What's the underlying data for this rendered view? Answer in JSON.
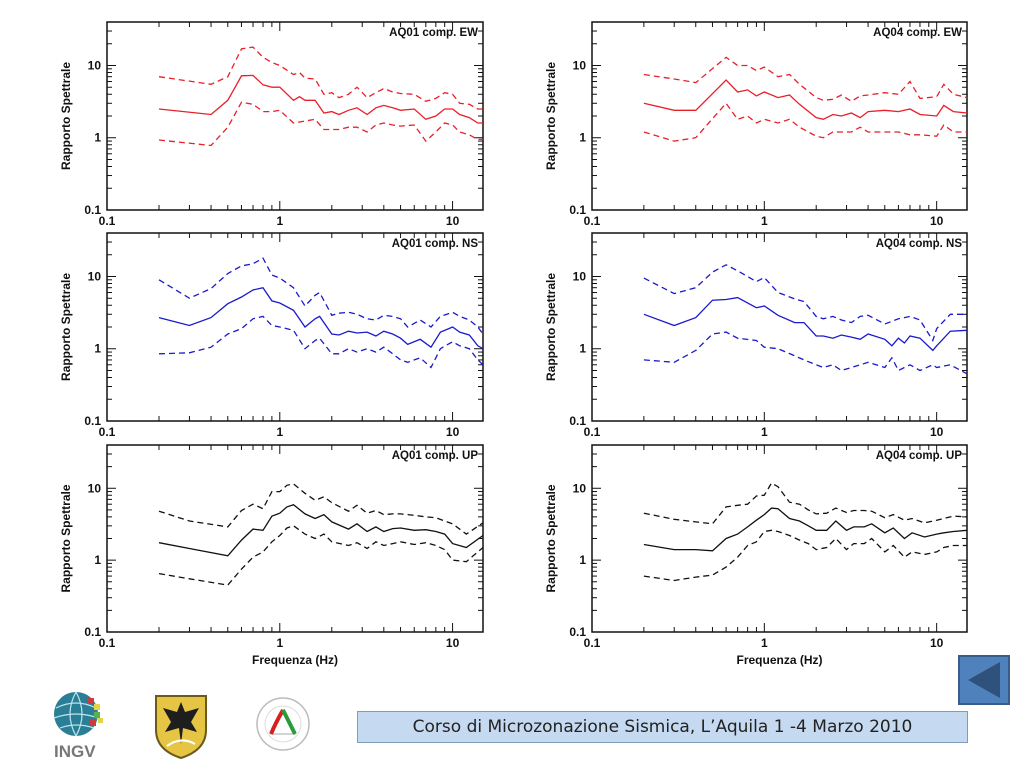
{
  "footer": {
    "text": "Corso di Microzonazione Sismica, L’Aquila 1 -4 Marzo 2010"
  },
  "nav": {
    "back_icon": "triangle-left-icon"
  },
  "logos": [
    {
      "name": "ingv-logo",
      "text": "INGV"
    },
    {
      "name": "regione-abruzzo-crest",
      "text": ""
    },
    {
      "name": "protezione-civile-logo",
      "text": "PROTEZIONE CIVILE NAZIONALE"
    }
  ],
  "colors": {
    "EW": "#e8202a",
    "NS": "#1a1acc",
    "UP": "#111111",
    "footer_bg": "#c5d9f1",
    "nav_btn": "#4f81bd"
  },
  "chart_data": [
    {
      "type": "line",
      "title": "AQ01 comp. EW",
      "component": "EW",
      "xlabel": "",
      "ylabel": "Rapporto Spettrale",
      "xscale": "log",
      "yscale": "log",
      "xlim": [
        0.1,
        15
      ],
      "ylim": [
        0.1,
        40
      ],
      "xticks": [
        "0.1",
        "1",
        "10"
      ],
      "yticks": [
        "0.1",
        "1",
        "10"
      ],
      "x": [
        0.2,
        0.4,
        0.5,
        0.6,
        0.7,
        0.8,
        0.9,
        1.0,
        1.2,
        1.3,
        1.4,
        1.6,
        1.8,
        2.0,
        2.2,
        2.5,
        2.8,
        3.2,
        3.6,
        4.0,
        4.5,
        5.0,
        6.0,
        7.0,
        8.0,
        9.0,
        10.0,
        11.0,
        12.5,
        14.0,
        15.0
      ],
      "series": [
        {
          "name": "mean",
          "style": "solid",
          "values": [
            2.5,
            2.1,
            3.3,
            7.2,
            7.3,
            5.4,
            5.0,
            5.0,
            3.3,
            3.7,
            3.3,
            3.3,
            2.2,
            2.3,
            2.1,
            2.4,
            2.6,
            2.1,
            2.6,
            2.8,
            2.6,
            2.4,
            2.5,
            1.8,
            2.0,
            2.5,
            2.5,
            2.1,
            1.9,
            1.6,
            1.6
          ]
        },
        {
          "name": "mean+sd",
          "style": "dashed",
          "values": [
            7.0,
            5.5,
            7.0,
            17.0,
            18.0,
            13.0,
            11.0,
            10.0,
            7.5,
            8.0,
            6.7,
            6.5,
            4.0,
            4.2,
            3.6,
            4.0,
            5.0,
            3.6,
            4.2,
            4.8,
            4.3,
            4.1,
            4.0,
            3.2,
            3.5,
            4.2,
            4.0,
            3.0,
            2.9,
            2.5,
            2.5
          ]
        },
        {
          "name": "mean-sd",
          "style": "dashed",
          "values": [
            0.93,
            0.78,
            1.4,
            3.1,
            2.9,
            2.3,
            2.3,
            2.4,
            1.6,
            1.65,
            1.7,
            1.8,
            1.3,
            1.3,
            1.3,
            1.4,
            1.4,
            1.2,
            1.5,
            1.6,
            1.5,
            1.45,
            1.5,
            0.9,
            1.2,
            1.6,
            1.5,
            1.2,
            1.1,
            0.95,
            0.95
          ]
        }
      ]
    },
    {
      "type": "line",
      "title": "AQ04 comp. EW",
      "component": "EW",
      "xlabel": "",
      "ylabel": "Rapporto Spettrale",
      "xscale": "log",
      "yscale": "log",
      "xlim": [
        0.1,
        15
      ],
      "ylim": [
        0.1,
        40
      ],
      "xticks": [
        "0.1",
        "1",
        "10"
      ],
      "yticks": [
        "0.1",
        "1",
        "10"
      ],
      "x": [
        0.2,
        0.3,
        0.4,
        0.6,
        0.7,
        0.8,
        0.9,
        1.0,
        1.2,
        1.4,
        1.6,
        2.0,
        2.2,
        2.5,
        2.8,
        3.2,
        3.6,
        4.0,
        5.0,
        6.0,
        7.0,
        8.0,
        10.0,
        11.0,
        12.5,
        15.0
      ],
      "series": [
        {
          "name": "mean",
          "style": "solid",
          "values": [
            3.0,
            2.4,
            2.4,
            6.3,
            4.3,
            4.6,
            3.8,
            4.3,
            3.6,
            3.9,
            2.9,
            1.9,
            1.8,
            2.1,
            2.0,
            2.2,
            1.9,
            2.3,
            2.4,
            2.3,
            2.5,
            2.1,
            2.0,
            2.8,
            2.3,
            2.2
          ]
        },
        {
          "name": "mean+sd",
          "style": "dashed",
          "values": [
            7.5,
            6.5,
            5.8,
            13.0,
            10.0,
            10.0,
            8.5,
            9.5,
            7.0,
            7.5,
            5.5,
            3.6,
            3.3,
            3.4,
            3.9,
            3.2,
            3.8,
            3.9,
            4.2,
            4.0,
            6.0,
            3.5,
            3.7,
            5.5,
            4.0,
            3.6
          ]
        },
        {
          "name": "mean-sd",
          "style": "dashed",
          "values": [
            1.2,
            0.9,
            1.0,
            3.0,
            1.8,
            2.0,
            1.6,
            1.8,
            1.6,
            1.8,
            1.4,
            1.05,
            1.0,
            1.2,
            1.2,
            1.2,
            1.4,
            1.2,
            1.2,
            1.2,
            1.1,
            1.1,
            1.05,
            1.5,
            1.2,
            1.2
          ]
        }
      ]
    },
    {
      "type": "line",
      "title": "AQ01 comp. NS",
      "component": "NS",
      "xlabel": "",
      "ylabel": "Rapporto Spettrale",
      "xscale": "log",
      "yscale": "log",
      "xlim": [
        0.1,
        15
      ],
      "ylim": [
        0.1,
        40
      ],
      "xticks": [
        "0.1",
        "1",
        "10"
      ],
      "yticks": [
        "0.1",
        "1",
        "10"
      ],
      "x": [
        0.2,
        0.3,
        0.4,
        0.5,
        0.6,
        0.7,
        0.8,
        0.9,
        1.0,
        1.2,
        1.4,
        1.6,
        1.7,
        2.0,
        2.2,
        2.5,
        2.8,
        3.2,
        3.6,
        4.0,
        4.5,
        5.0,
        5.5,
        6.5,
        7.5,
        8.5,
        10.0,
        11.0,
        12.5,
        14.0,
        15.0
      ],
      "series": [
        {
          "name": "mean",
          "style": "solid",
          "values": [
            2.7,
            2.1,
            2.7,
            4.2,
            5.2,
            6.5,
            7.0,
            4.6,
            4.3,
            3.4,
            2.0,
            2.6,
            2.8,
            1.6,
            1.55,
            1.75,
            1.65,
            1.7,
            1.5,
            1.75,
            1.6,
            1.4,
            1.15,
            1.35,
            1.05,
            1.7,
            2.0,
            1.7,
            1.55,
            1.1,
            1.0
          ]
        },
        {
          "name": "mean+sd",
          "style": "dashed",
          "values": [
            9.0,
            5.0,
            6.8,
            11.0,
            14.0,
            15.0,
            18.0,
            10.5,
            9.5,
            7.0,
            3.9,
            5.5,
            6.0,
            2.9,
            3.1,
            3.2,
            3.0,
            2.6,
            2.5,
            2.9,
            2.8,
            2.6,
            2.0,
            2.5,
            2.0,
            2.8,
            3.2,
            2.8,
            2.5,
            2.0,
            1.6
          ]
        },
        {
          "name": "mean-sd",
          "style": "dashed",
          "values": [
            0.85,
            0.88,
            1.05,
            1.6,
            1.9,
            2.6,
            2.8,
            2.1,
            2.0,
            1.8,
            1.0,
            1.3,
            1.4,
            0.85,
            0.85,
            1.0,
            0.9,
            1.0,
            0.9,
            1.05,
            0.85,
            0.7,
            0.65,
            0.75,
            0.55,
            1.0,
            1.25,
            1.1,
            1.0,
            0.7,
            0.6
          ]
        }
      ]
    },
    {
      "type": "line",
      "title": "AQ04 comp. NS",
      "component": "NS",
      "xlabel": "",
      "ylabel": "Rapporto Spettrale",
      "xscale": "log",
      "yscale": "log",
      "xlim": [
        0.1,
        15
      ],
      "ylim": [
        0.1,
        40
      ],
      "xticks": [
        "0.1",
        "1",
        "10"
      ],
      "yticks": [
        "0.1",
        "1",
        "10"
      ],
      "x": [
        0.2,
        0.3,
        0.4,
        0.5,
        0.6,
        0.7,
        0.9,
        1.0,
        1.2,
        1.5,
        1.7,
        2.0,
        2.2,
        2.5,
        2.8,
        3.2,
        3.6,
        4.0,
        5.0,
        5.5,
        6.0,
        6.5,
        7.0,
        8.0,
        9.5,
        10.0,
        12.0,
        15.0
      ],
      "series": [
        {
          "name": "mean",
          "style": "solid",
          "values": [
            3.0,
            2.1,
            2.7,
            4.7,
            4.8,
            5.1,
            3.7,
            3.9,
            2.9,
            2.3,
            2.3,
            1.5,
            1.5,
            1.4,
            1.55,
            1.45,
            1.35,
            1.6,
            1.35,
            1.1,
            1.4,
            1.2,
            1.5,
            1.4,
            0.95,
            1.1,
            1.75,
            1.8
          ]
        },
        {
          "name": "mean+sd",
          "style": "dashed",
          "values": [
            9.5,
            5.8,
            7.0,
            11.5,
            14.5,
            12.0,
            8.5,
            9.7,
            6.0,
            4.9,
            4.5,
            2.8,
            2.6,
            2.8,
            2.5,
            2.3,
            2.8,
            2.9,
            2.2,
            2.4,
            2.6,
            2.7,
            2.8,
            2.5,
            1.3,
            1.9,
            3.0,
            3.0
          ]
        },
        {
          "name": "mean-sd",
          "style": "dashed",
          "values": [
            0.7,
            0.65,
            0.95,
            1.6,
            1.7,
            1.4,
            1.3,
            1.05,
            1.0,
            0.8,
            0.7,
            0.6,
            0.55,
            0.6,
            0.5,
            0.55,
            0.6,
            0.65,
            0.55,
            0.75,
            0.5,
            0.55,
            0.6,
            0.5,
            0.6,
            0.55,
            0.6,
            0.45
          ]
        }
      ]
    },
    {
      "type": "line",
      "title": "AQ01 comp. UP",
      "component": "UP",
      "xlabel": "Frequenza (Hz)",
      "ylabel": "Rapporto Spettrale",
      "xscale": "log",
      "yscale": "log",
      "xlim": [
        0.1,
        15
      ],
      "ylim": [
        0.1,
        40
      ],
      "xticks": [
        "0.1",
        "1",
        "10"
      ],
      "yticks": [
        "0.1",
        "1",
        "10"
      ],
      "x": [
        0.2,
        0.3,
        0.5,
        0.6,
        0.7,
        0.8,
        0.9,
        1.0,
        1.1,
        1.2,
        1.4,
        1.6,
        1.8,
        2.0,
        2.5,
        2.8,
        3.2,
        3.6,
        4.0,
        4.5,
        5.0,
        6.0,
        7.0,
        8.0,
        9.0,
        10.0,
        12.0,
        15.0
      ],
      "series": [
        {
          "name": "mean",
          "style": "solid",
          "values": [
            1.75,
            1.45,
            1.15,
            1.9,
            2.7,
            2.6,
            4.1,
            4.5,
            5.5,
            5.9,
            4.4,
            3.8,
            4.3,
            3.4,
            2.7,
            3.2,
            2.5,
            2.9,
            2.5,
            2.75,
            2.8,
            2.6,
            2.65,
            2.5,
            2.3,
            1.7,
            1.5,
            2.2
          ]
        },
        {
          "name": "mean+sd",
          "style": "dashed",
          "values": [
            4.8,
            3.5,
            2.9,
            4.9,
            6.0,
            5.2,
            9.0,
            9.0,
            11.0,
            11.5,
            8.5,
            6.8,
            7.6,
            6.3,
            4.8,
            5.8,
            4.5,
            4.9,
            4.3,
            4.4,
            4.4,
            4.2,
            4.0,
            3.9,
            3.5,
            3.2,
            2.3,
            3.3
          ]
        },
        {
          "name": "mean-sd",
          "style": "dashed",
          "values": [
            0.65,
            0.55,
            0.45,
            0.75,
            1.1,
            1.3,
            1.8,
            2.2,
            2.8,
            3.0,
            2.3,
            2.0,
            2.3,
            1.8,
            1.6,
            1.75,
            1.45,
            1.8,
            1.6,
            1.7,
            1.8,
            1.65,
            1.75,
            1.6,
            1.4,
            1.0,
            0.95,
            1.5
          ]
        }
      ]
    },
    {
      "type": "line",
      "title": "AQ04 comp. UP",
      "component": "UP",
      "xlabel": "Frequenza (Hz)",
      "ylabel": "Rapporto Spettrale",
      "xscale": "log",
      "yscale": "log",
      "xlim": [
        0.1,
        15
      ],
      "ylim": [
        0.1,
        40
      ],
      "xticks": [
        "0.1",
        "1",
        "10"
      ],
      "yticks": [
        "0.1",
        "1",
        "10"
      ],
      "x": [
        0.2,
        0.3,
        0.4,
        0.5,
        0.6,
        0.7,
        0.8,
        0.9,
        1.0,
        1.1,
        1.2,
        1.4,
        1.6,
        1.8,
        2.0,
        2.3,
        2.6,
        3.0,
        3.3,
        3.8,
        4.2,
        5.0,
        5.6,
        6.5,
        7.2,
        8.5,
        10.0,
        11.0,
        12.5,
        15.0
      ],
      "series": [
        {
          "name": "mean",
          "style": "solid",
          "values": [
            1.65,
            1.4,
            1.4,
            1.35,
            2.0,
            2.3,
            2.9,
            3.6,
            4.3,
            5.3,
            5.2,
            3.8,
            3.5,
            3.0,
            2.6,
            2.6,
            3.5,
            2.6,
            2.9,
            2.9,
            3.2,
            2.4,
            2.8,
            2.0,
            2.4,
            2.1,
            2.3,
            2.4,
            2.5,
            2.6
          ]
        },
        {
          "name": "mean+sd",
          "style": "dashed",
          "values": [
            4.5,
            3.7,
            3.4,
            3.2,
            5.5,
            5.8,
            6.0,
            7.8,
            8.0,
            11.8,
            10.5,
            6.4,
            6.0,
            5.0,
            4.4,
            4.5,
            5.3,
            4.6,
            4.9,
            4.9,
            4.8,
            3.9,
            4.3,
            3.6,
            3.8,
            3.3,
            3.6,
            3.8,
            4.1,
            4.0
          ]
        },
        {
          "name": "mean-sd",
          "style": "dashed",
          "values": [
            0.6,
            0.52,
            0.58,
            0.62,
            0.8,
            1.1,
            1.6,
            1.8,
            2.5,
            2.6,
            2.5,
            2.2,
            1.9,
            1.7,
            1.4,
            1.5,
            2.0,
            1.4,
            1.7,
            1.7,
            2.0,
            1.3,
            1.6,
            1.1,
            1.3,
            1.2,
            1.3,
            1.5,
            1.6,
            1.6
          ]
        }
      ]
    }
  ]
}
